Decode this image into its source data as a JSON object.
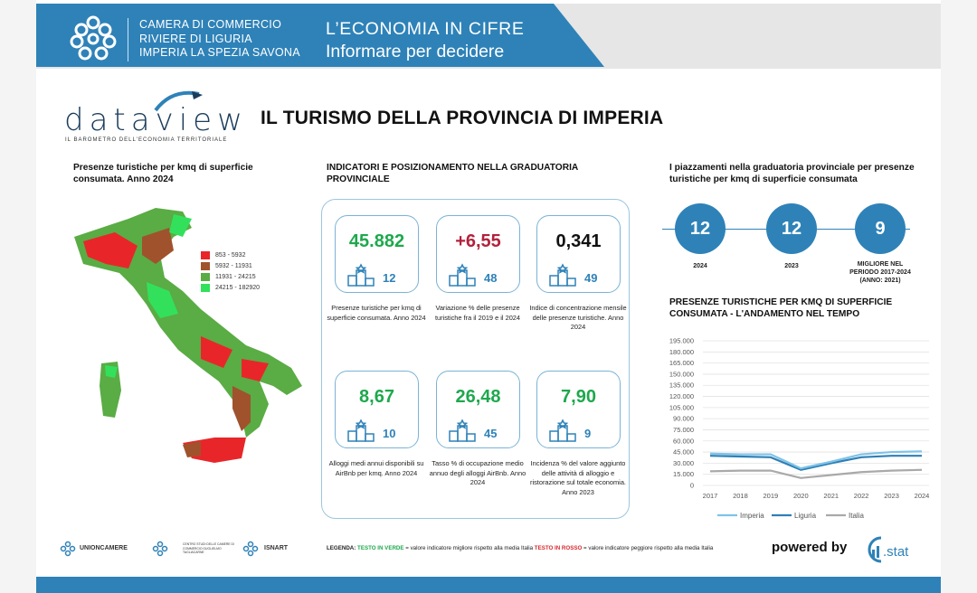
{
  "header": {
    "org_line1": "CAMERA DI COMMERCIO",
    "org_line2": "RIVIERE DI LIGURIA",
    "org_line3": "IMPERIA LA SPEZIA SAVONA",
    "title": "L’ECONOMIA  IN  CIFRE",
    "subtitle": "Informare per decidere"
  },
  "brand": {
    "wordmark": "dataview",
    "tagline": "IL BAROMETRO DELL'ECONOMIA TERRITORIALE"
  },
  "page_title": "IL TURISMO DELLA PROVINCIA DI IMPERIA",
  "map": {
    "title": "Presenze turistiche per kmq di superficie consumata. Anno 2024",
    "legend": [
      {
        "label": "853 - 5932",
        "color": "#e8262a"
      },
      {
        "label": "5932 - 11931",
        "color": "#a0522d"
      },
      {
        "label": "11931 - 24215",
        "color": "#5aac44"
      },
      {
        "label": "24215 - 182920",
        "color": "#33e05c"
      }
    ]
  },
  "indicators": {
    "title": "INDICATORI E POSIZIONAMENTO NELLA GRADUATORIA PROVINCIALE",
    "cards": [
      {
        "value": "45.882",
        "rank": "12",
        "color": "#1ea84d",
        "desc": "Presenze turistiche per kmq di superficie consumata. Anno 2024"
      },
      {
        "value": "+6,55",
        "rank": "48",
        "color": "#b2213c",
        "desc": "Variazione % delle presenze turistiche fra il 2019 e il 2024"
      },
      {
        "value": "0,341",
        "rank": "49",
        "color": "#111111",
        "desc": "Indice di concentrazione mensile delle presenze turistiche. Anno 2024"
      },
      {
        "value": "8,67",
        "rank": "10",
        "color": "#1ea84d",
        "desc": "Alloggi medi annui disponibili su AirBnb per kmq. Anno 2024"
      },
      {
        "value": "26,48",
        "rank": "45",
        "color": "#1ea84d",
        "desc": "Tasso % di occupazione medio annuo degli alloggi AirBnb. Anno 2024"
      },
      {
        "value": "7,90",
        "rank": "9",
        "color": "#1ea84d",
        "desc": "Incidenza % del valore aggiunto delle attività di alloggio e ristorazione sul totale economia. Anno 2023"
      }
    ]
  },
  "rankings": {
    "title": "I piazzamenti nella graduatoria provinciale per presenze turistiche per kmq di superficie consumata",
    "items": [
      {
        "value": "12",
        "label": "2024",
        "label2": ""
      },
      {
        "value": "12",
        "label": "2023",
        "label2": ""
      },
      {
        "value": "9",
        "label": "MIGLIORE NEL PERIODO 2017-2024",
        "label2": "(ANNO: 2021)"
      }
    ]
  },
  "trend": {
    "title": "PRESENZE TURISTICHE PER KMQ DI SUPERFICIE CONSUMATA - L'ANDAMENTO NEL TEMPO"
  },
  "chart_data": {
    "type": "line",
    "title": "PRESENZE TURISTICHE PER KMQ DI SUPERFICIE CONSUMATA - L'ANDAMENTO NEL TEMPO",
    "x": [
      "2017",
      "2018",
      "2019",
      "2020",
      "2021",
      "2022",
      "2023",
      "2024"
    ],
    "yticks": [
      "195.000",
      "180.000",
      "165.000",
      "150.000",
      "135.000",
      "120.000",
      "105.000",
      "90.000",
      "75.000",
      "60.000",
      "45.000",
      "30.000",
      "15.000",
      "0"
    ],
    "ylim": [
      0,
      195000
    ],
    "grid": true,
    "legend_position": "bottom",
    "series": [
      {
        "name": "Imperia",
        "color": "#7ec3e8",
        "values": [
          43000,
          42000,
          42000,
          23000,
          32000,
          42000,
          45000,
          45882
        ]
      },
      {
        "name": "Liguria",
        "color": "#2f7fb5",
        "values": [
          40000,
          39000,
          38000,
          21000,
          30000,
          38000,
          40000,
          40000
        ]
      },
      {
        "name": "Italia",
        "color": "#a9a9a9",
        "values": [
          19000,
          20000,
          20000,
          10000,
          14000,
          18000,
          20000,
          21000
        ]
      }
    ]
  },
  "footer": {
    "logo1": "UNIONCAMERE",
    "logo2": "CENTRO STUDI DELLE CAMERE DI COMMERCIO GUGLIELMO TAGLIACARNE",
    "logo3": "ISNART",
    "legenda_label": "LEGENDA:",
    "legenda_green": "TESTO IN VERDE",
    "legenda_mid": " = valore indicatore migliore rispetto alla media Italia ",
    "legenda_red": "TESTO IN ROSSO",
    "legenda_end": " = valore indicatore peggiore rispetto alla media Italia",
    "powered": "powered by",
    "cstat": ".stat"
  }
}
